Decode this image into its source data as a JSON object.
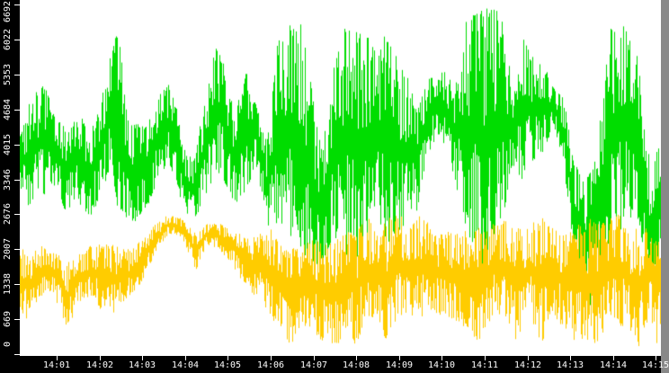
{
  "chart_data": {
    "type": "line",
    "style": "min-max envelope columns, bandwidth-monitor style",
    "title": "",
    "legend": null,
    "background_color": "#ffffff",
    "axis_strip_color": "#000000",
    "axis_text_color": "#ffffff",
    "x_axis": {
      "tick_labels": [
        "14:01",
        "14:02",
        "14:03",
        "14:04",
        "14:05",
        "14:06",
        "14:07",
        "14:08",
        "14:09",
        "14:10",
        "14:11",
        "14:12",
        "14:13",
        "14:14",
        "14:15"
      ],
      "start_time": "14:00",
      "minutes_per_tick": 1
    },
    "y_axis": {
      "tick_labels": [
        "0",
        "669",
        "1338",
        "2007",
        "2676",
        "3346",
        "4015",
        "4684",
        "5353",
        "6022",
        "6692"
      ],
      "min": 0,
      "max": 6692,
      "tick_step": 669.2
    },
    "series": [
      {
        "name": "green-series",
        "color": "#00DD00",
        "envelope_points": [
          [
            0.1,
            3200,
            4100
          ],
          [
            0.35,
            2800,
            4800
          ],
          [
            0.7,
            3000,
            5300
          ],
          [
            0.9,
            3300,
            4700
          ],
          [
            1.2,
            2700,
            4300
          ],
          [
            1.5,
            2900,
            4600
          ],
          [
            1.8,
            2600,
            4300
          ],
          [
            2.0,
            3000,
            4700
          ],
          [
            2.2,
            3400,
            5600
          ],
          [
            2.45,
            2700,
            6300
          ],
          [
            2.6,
            2600,
            4800
          ],
          [
            2.8,
            2500,
            4400
          ],
          [
            3.1,
            2800,
            4400
          ],
          [
            3.35,
            3300,
            4900
          ],
          [
            3.6,
            3700,
            5200
          ],
          [
            3.8,
            3200,
            4700
          ],
          [
            4.0,
            2700,
            3900
          ],
          [
            4.2,
            2500,
            3700
          ],
          [
            4.5,
            3100,
            5200
          ],
          [
            4.7,
            3400,
            5900
          ],
          [
            4.9,
            3300,
            5600
          ],
          [
            5.15,
            2800,
            4600
          ],
          [
            5.45,
            3100,
            5500
          ],
          [
            5.65,
            3600,
            4800
          ],
          [
            5.9,
            2400,
            4100
          ],
          [
            6.2,
            2400,
            6300
          ],
          [
            6.45,
            2100,
            6500
          ],
          [
            6.7,
            1900,
            6400
          ],
          [
            6.95,
            1700,
            5100
          ],
          [
            7.2,
            1500,
            3900
          ],
          [
            7.45,
            2300,
            5600
          ],
          [
            7.7,
            1800,
            6400
          ],
          [
            8.0,
            1700,
            6400
          ],
          [
            8.25,
            2100,
            6100
          ],
          [
            8.5,
            2600,
            5800
          ],
          [
            8.7,
            1900,
            6200
          ],
          [
            8.95,
            2200,
            5700
          ],
          [
            9.2,
            2500,
            5300
          ],
          [
            9.4,
            2700,
            4700
          ],
          [
            9.65,
            3800,
            5300
          ],
          [
            9.9,
            4200,
            5500
          ],
          [
            10.1,
            3900,
            5400
          ],
          [
            10.3,
            3300,
            5100
          ],
          [
            10.5,
            2500,
            6300
          ],
          [
            10.75,
            2000,
            6600
          ],
          [
            11.0,
            1400,
            6692
          ],
          [
            11.2,
            1900,
            6692
          ],
          [
            11.4,
            2500,
            6400
          ],
          [
            11.65,
            3600,
            5200
          ],
          [
            11.9,
            3300,
            6100
          ],
          [
            12.15,
            3700,
            5700
          ],
          [
            12.4,
            3900,
            5500
          ],
          [
            12.6,
            4400,
            5100
          ],
          [
            12.85,
            3500,
            4900
          ],
          [
            13.05,
            2000,
            3800
          ],
          [
            13.3,
            800,
            3300
          ],
          [
            13.55,
            900,
            3700
          ],
          [
            13.75,
            1500,
            4900
          ],
          [
            13.95,
            1900,
            6400
          ],
          [
            14.15,
            2100,
            6692
          ],
          [
            14.35,
            2600,
            6100
          ],
          [
            14.55,
            2600,
            5900
          ],
          [
            14.75,
            1800,
            4100
          ],
          [
            14.9,
            900,
            3600
          ],
          [
            15.05,
            1500,
            4000
          ],
          [
            15.2,
            2000,
            3500
          ]
        ]
      },
      {
        "name": "yellow-series",
        "color": "#FFCC00",
        "envelope_points": [
          [
            0.1,
            900,
            2100
          ],
          [
            0.35,
            600,
            1900
          ],
          [
            0.6,
            1100,
            2100
          ],
          [
            0.9,
            1200,
            2000
          ],
          [
            1.25,
            400,
            1800
          ],
          [
            1.5,
            1000,
            1900
          ],
          [
            1.8,
            1100,
            2100
          ],
          [
            2.1,
            700,
            2100
          ],
          [
            2.4,
            800,
            2100
          ],
          [
            2.7,
            1100,
            2000
          ],
          [
            3.0,
            1400,
            2200
          ],
          [
            3.3,
            1900,
            2500
          ],
          [
            3.6,
            2300,
            2670
          ],
          [
            3.9,
            2250,
            2600
          ],
          [
            4.25,
            1600,
            2300
          ],
          [
            4.5,
            2100,
            2500
          ],
          [
            4.8,
            2000,
            2500
          ],
          [
            5.1,
            1700,
            2400
          ],
          [
            5.4,
            1300,
            2300
          ],
          [
            5.7,
            1000,
            2300
          ],
          [
            6.0,
            700,
            2400
          ],
          [
            6.3,
            400,
            2000
          ],
          [
            6.45,
            100,
            2000
          ],
          [
            6.7,
            500,
            2100
          ],
          [
            7.0,
            400,
            2200
          ],
          [
            7.3,
            100,
            2100
          ],
          [
            7.55,
            100,
            2200
          ],
          [
            7.8,
            500,
            2400
          ],
          [
            7.95,
            100,
            2300
          ],
          [
            8.2,
            600,
            2700
          ],
          [
            8.5,
            700,
            2400
          ],
          [
            8.7,
            200,
            2600
          ],
          [
            8.95,
            700,
            2900
          ],
          [
            9.2,
            800,
            2400
          ],
          [
            9.5,
            600,
            2800
          ],
          [
            9.8,
            800,
            2300
          ],
          [
            10.1,
            700,
            2400
          ],
          [
            10.4,
            600,
            2300
          ],
          [
            10.7,
            400,
            2500
          ],
          [
            10.9,
            100,
            2400
          ],
          [
            11.2,
            800,
            2500
          ],
          [
            11.5,
            700,
            2600
          ],
          [
            11.74,
            150,
            2400
          ],
          [
            12.0,
            800,
            2500
          ],
          [
            12.35,
            150,
            2700
          ],
          [
            12.6,
            700,
            2400
          ],
          [
            12.9,
            400,
            2300
          ],
          [
            13.2,
            150,
            2500
          ],
          [
            13.5,
            200,
            2600
          ],
          [
            13.65,
            150,
            2500
          ],
          [
            13.9,
            700,
            2600
          ],
          [
            14.2,
            500,
            2700
          ],
          [
            14.45,
            400,
            2300
          ],
          [
            14.6,
            100,
            2500
          ],
          [
            14.85,
            700,
            2400
          ],
          [
            15.0,
            150,
            2300
          ],
          [
            15.2,
            900,
            2000
          ]
        ]
      }
    ]
  }
}
